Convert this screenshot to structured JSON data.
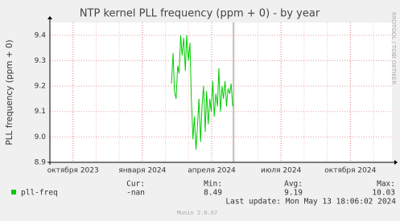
{
  "chart_data": {
    "type": "line",
    "title": "NTP kernel PLL frequency (ppm + 0) - by year",
    "y_label": "PLL frequency (ppm + 0)",
    "watermark": "RRDTOOL / TOBI OETIKER",
    "xlim": [
      0,
      14.8
    ],
    "xticks": [
      {
        "value": 1,
        "label": "октября 2023"
      },
      {
        "value": 4,
        "label": "января 2024"
      },
      {
        "value": 7,
        "label": "апреля 2024"
      },
      {
        "value": 10,
        "label": "июля 2024"
      },
      {
        "value": 13,
        "label": "октября 2024"
      }
    ],
    "ylim": [
      8.9,
      9.45
    ],
    "yticks": [
      8.9,
      {
        "value": 9,
        "label": "9.0"
      },
      9.1,
      9.2,
      9.3,
      9.4
    ],
    "grid": true,
    "series": [
      {
        "name": "pll-freq",
        "color": "#00cc00",
        "x": [
          5.26,
          5.33,
          5.39,
          5.46,
          5.53,
          5.59,
          5.66,
          5.72,
          5.79,
          5.86,
          5.92,
          5.99,
          6.06,
          6.12,
          6.19,
          6.25,
          6.32,
          6.39,
          6.45,
          6.52,
          6.58,
          6.65,
          6.72,
          6.78,
          6.85,
          6.92,
          6.98,
          7.05,
          7.11,
          7.18,
          7.25,
          7.31,
          7.38,
          7.45,
          7.51,
          7.58,
          7.64,
          7.71,
          7.78,
          7.84,
          7.91
        ],
        "values": [
          9.21,
          9.33,
          9.18,
          9.15,
          9.28,
          9.25,
          9.4,
          9.32,
          9.39,
          9.26,
          9.4,
          9.3,
          9.37,
          9.15,
          8.99,
          9.08,
          8.95,
          9.05,
          9.15,
          8.98,
          9.12,
          9.2,
          9.02,
          9.18,
          9.05,
          9.15,
          9.1,
          9.22,
          9.08,
          9.17,
          9.12,
          9.27,
          9.1,
          9.2,
          9.15,
          9.22,
          9.12,
          9.19,
          9.17,
          9.21,
          9.12
        ]
      }
    ],
    "summary": {
      "labels": [
        "Cur:",
        "Min:",
        "Avg:",
        "Max:"
      ],
      "values": [
        "-nan",
        "8.49",
        "9.19",
        "10.03"
      ]
    },
    "last_update": "Last update: Mon May 13 18:06:02 2024",
    "footer": "Munin 2.0.67"
  }
}
